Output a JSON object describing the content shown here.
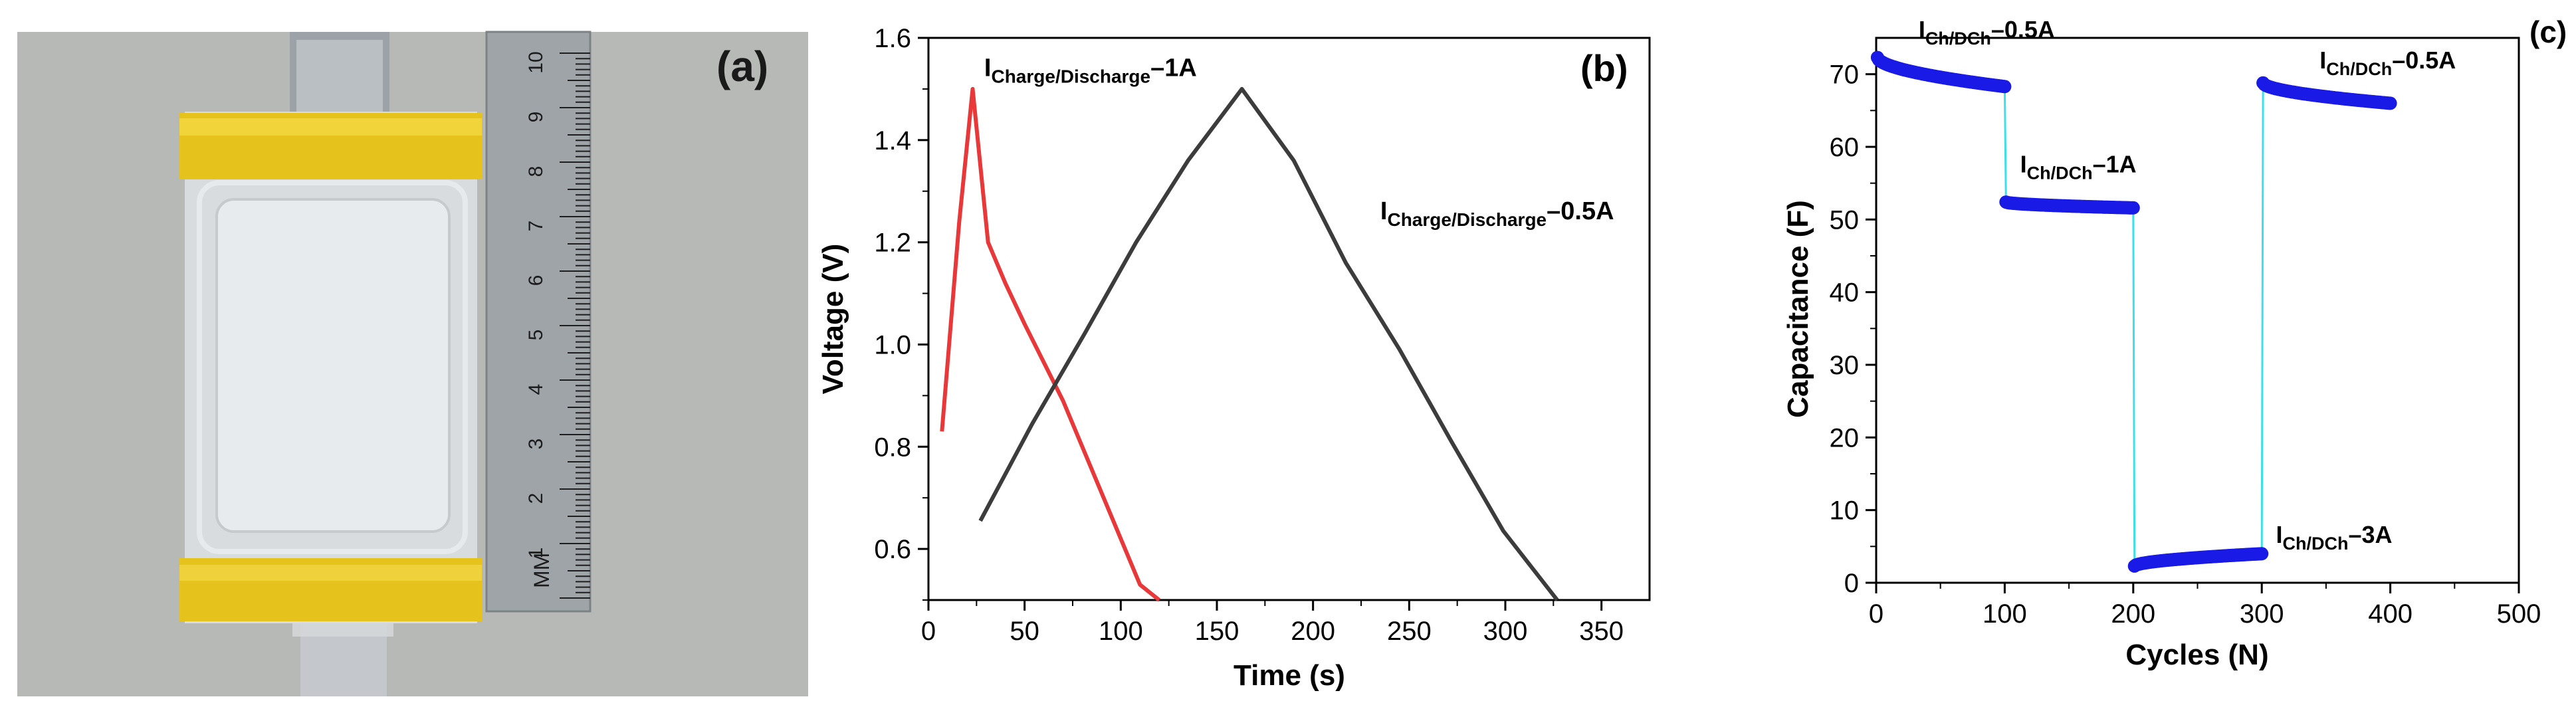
{
  "panels": {
    "a": {
      "label": "(a)",
      "ruler_unit": "MM",
      "ruler_numbers": [
        "10",
        "9",
        "8",
        "7",
        "6",
        "5",
        "4",
        "3",
        "2",
        "1"
      ]
    },
    "b": {
      "label": "(b)"
    },
    "c": {
      "label": "(c)"
    }
  },
  "chart_data": [
    {
      "type": "line",
      "panel": "b",
      "title": "",
      "xlabel": "Time (s)",
      "ylabel": "Voltage (V)",
      "xlim": [
        0,
        375
      ],
      "ylim": [
        0.5,
        1.6
      ],
      "xticks": [
        0,
        50,
        100,
        150,
        200,
        250,
        300,
        350
      ],
      "yticks": [
        0.6,
        0.8,
        1.0,
        1.2,
        1.4,
        1.6
      ],
      "ytick_labels": [
        "0.6",
        "0.8",
        "1.0",
        "1.2",
        "1.4",
        "1.6"
      ],
      "series": [
        {
          "name": "1A",
          "color": "#e8383a",
          "x": [
            7,
            16,
            23,
            31,
            40,
            50,
            70,
            90,
            110,
            120
          ],
          "y": [
            0.83,
            1.24,
            1.5,
            1.2,
            1.12,
            1.04,
            0.89,
            0.71,
            0.53,
            0.5
          ]
        },
        {
          "name": "0.5A",
          "color": "#3c3c3c",
          "x": [
            27,
            54,
            81,
            108,
            135,
            163,
            190,
            217,
            245,
            272,
            299,
            327
          ],
          "y": [
            0.655,
            0.845,
            1.02,
            1.2,
            1.36,
            1.5,
            1.36,
            1.16,
            0.99,
            0.81,
            0.635,
            0.5
          ]
        }
      ],
      "annotations": [
        {
          "main": "I",
          "sub": "Charge/Discharge",
          "tail": "–1A",
          "x": 29,
          "y": 1.525
        },
        {
          "main": "I",
          "sub": "Charge/Discharge",
          "tail": "–0.5A",
          "x": 235,
          "y": 1.245
        }
      ]
    },
    {
      "type": "scatter",
      "panel": "c",
      "title": "",
      "xlabel": "Cycles (N)",
      "ylabel": "Capacitance (F)",
      "xlim": [
        0,
        500
      ],
      "ylim": [
        0,
        75
      ],
      "xticks": [
        0,
        100,
        200,
        300,
        400,
        500
      ],
      "yticks": [
        0,
        10,
        20,
        30,
        40,
        50,
        60,
        70
      ],
      "marker_color": "#1a1ae6",
      "connector_color": "#3ce0e8",
      "segments": [
        {
          "current": "0.5A",
          "cycles": [
            1,
            100
          ],
          "cap_start": 72.3,
          "cap_end": 68.3
        },
        {
          "current": "1A",
          "cycles": [
            101,
            200
          ],
          "cap_start": 52.4,
          "cap_end": 51.6
        },
        {
          "current": "3A",
          "cycles": [
            201,
            300
          ],
          "cap_start": 2.3,
          "cap_end": 4.0
        },
        {
          "current": "0.5A",
          "cycles": [
            301,
            400
          ],
          "cap_start": 68.8,
          "cap_end": 66.0
        }
      ],
      "annotations": [
        {
          "main": "I",
          "sub": "Ch/DCh",
          "tail": "–0.5A",
          "x": 33,
          "y": 75
        },
        {
          "main": "I",
          "sub": "Ch/DCh",
          "tail": "–1A",
          "x": 112,
          "y": 56.5
        },
        {
          "main": "I",
          "sub": "Ch/DCh",
          "tail": "–3A",
          "x": 311,
          "y": 5.5
        },
        {
          "main": "I",
          "sub": "Ch/DCh",
          "tail": "–0.5A",
          "x": 345,
          "y": 70.8
        }
      ]
    }
  ]
}
